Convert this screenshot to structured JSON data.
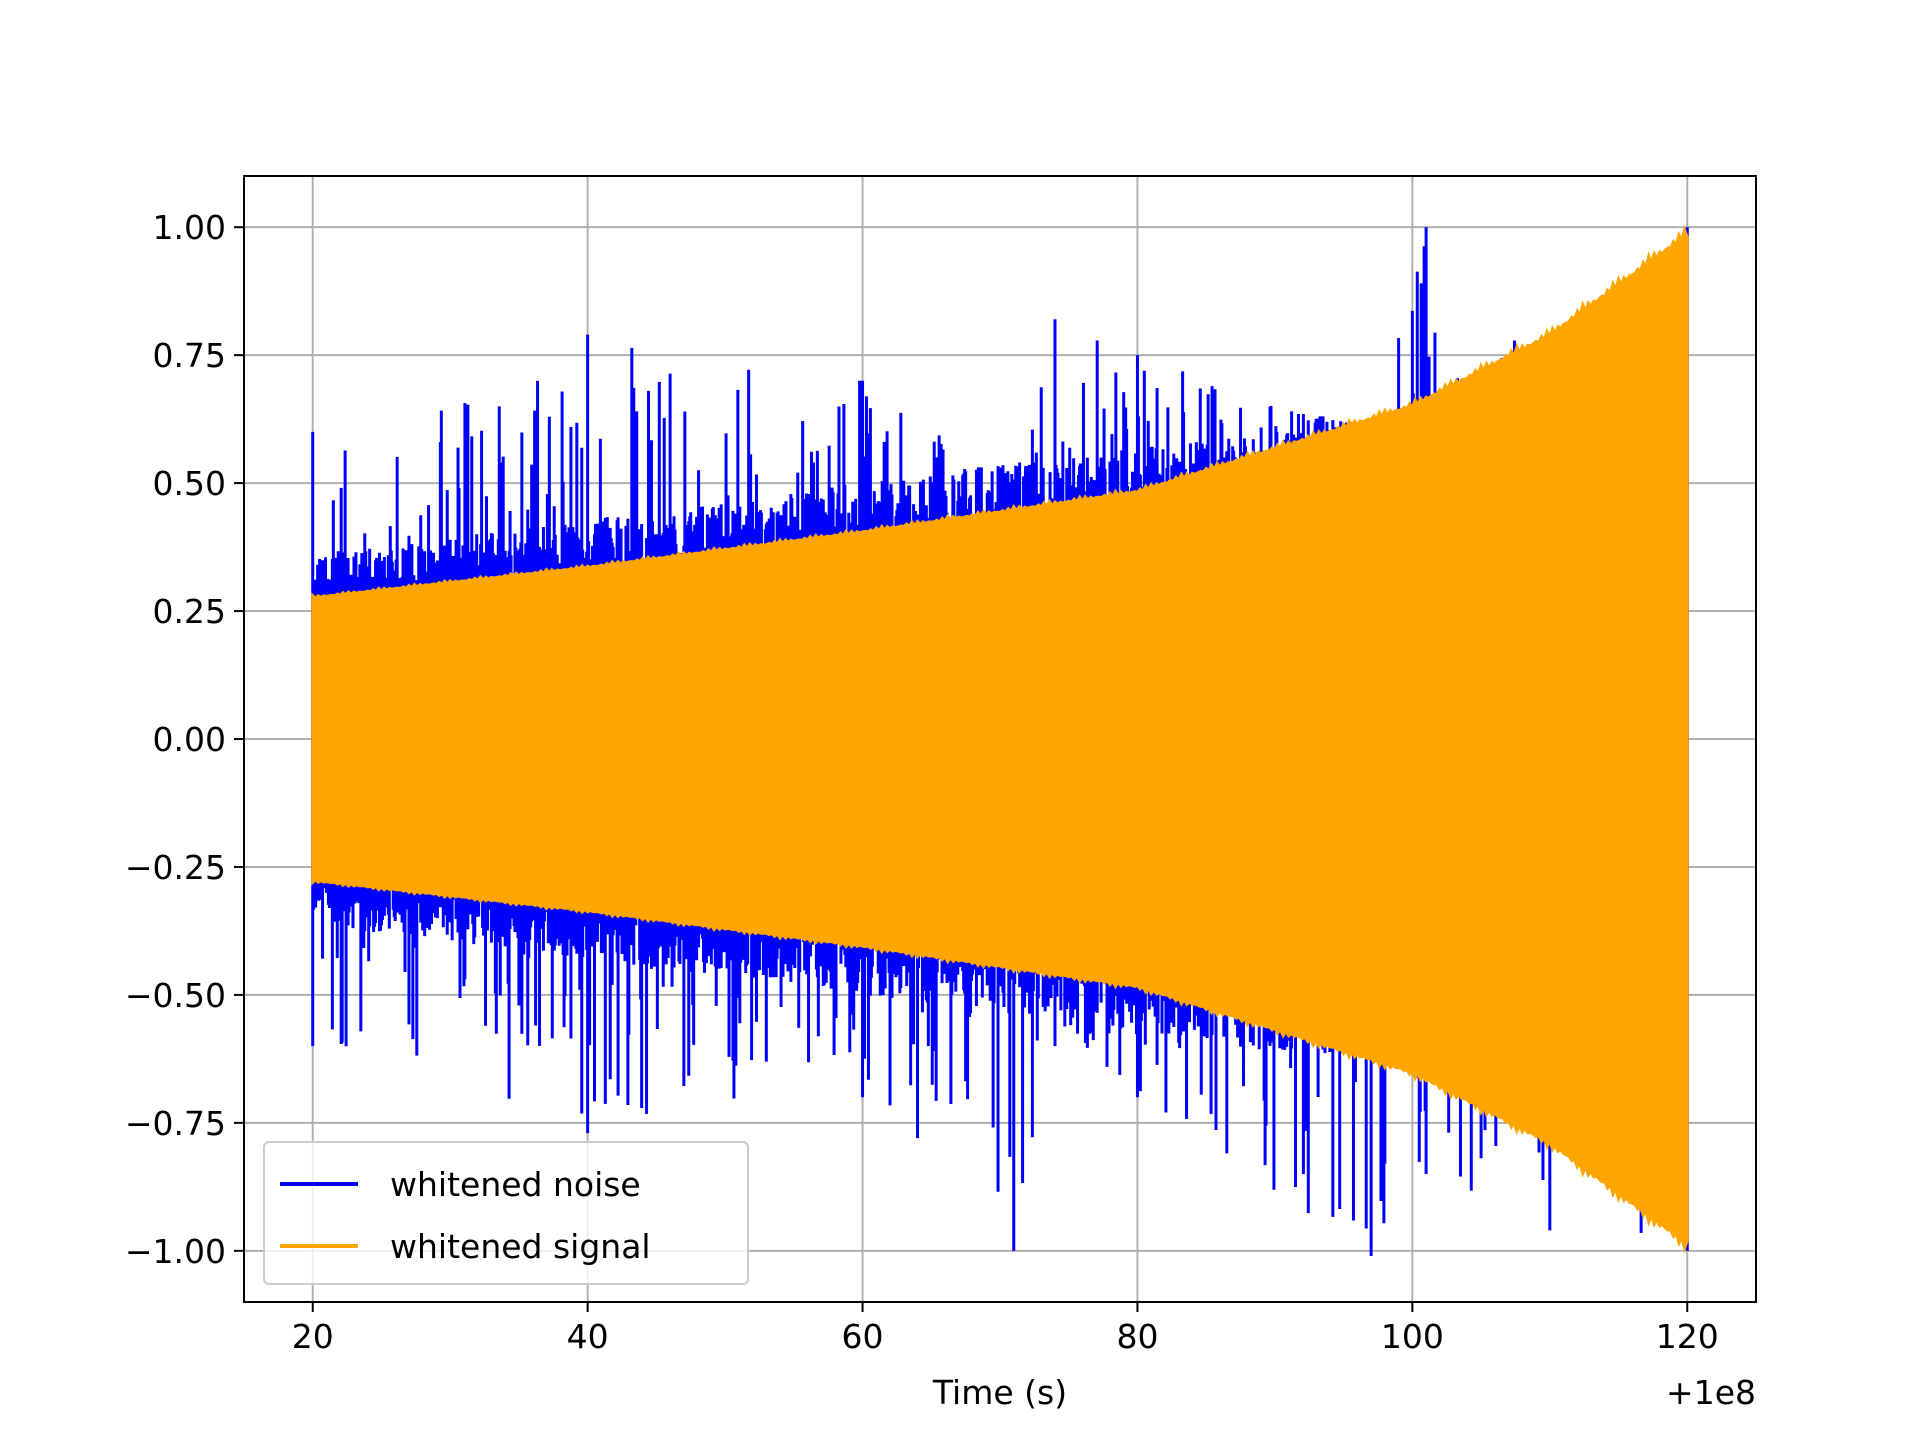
{
  "chart_data": {
    "type": "line",
    "xlabel": "Time (s)",
    "ylabel": "",
    "x_offset_label": "+1e8",
    "x_ticks": [
      20,
      40,
      60,
      80,
      100,
      120
    ],
    "x_tick_labels": [
      "20",
      "40",
      "60",
      "80",
      "100",
      "120"
    ],
    "y_ticks": [
      1.0,
      0.75,
      0.5,
      0.25,
      0.0,
      -0.25,
      -0.5,
      -0.75,
      -1.0
    ],
    "y_tick_labels": [
      "1.00",
      "0.75",
      "0.50",
      "0.25",
      "0.00",
      "−0.25",
      "−0.50",
      "−0.75",
      "−1.00"
    ],
    "xlim": [
      15,
      125
    ],
    "ylim": [
      -1.1,
      1.1
    ],
    "grid": true,
    "legend_position": "lower-left",
    "series": [
      {
        "name": "whitened noise",
        "color": "#0000ff",
        "x_range": [
          20,
          120
        ],
        "envelope": [
          {
            "x": 20,
            "min": -0.6,
            "max": 0.6
          },
          {
            "x": 40,
            "min": -0.77,
            "max": 0.79
          },
          {
            "x": 60,
            "min": -0.7,
            "max": 0.7
          },
          {
            "x": 71,
            "min": -1.0,
            "max": 0.5
          },
          {
            "x": 74,
            "min": -0.6,
            "max": 0.82
          },
          {
            "x": 80,
            "min": -0.7,
            "max": 0.75
          },
          {
            "x": 97,
            "min": -1.01,
            "max": 0.6
          },
          {
            "x": 101,
            "min": -0.85,
            "max": 1.0
          },
          {
            "x": 110,
            "min": -0.96,
            "max": 0.7
          },
          {
            "x": 120,
            "min": -1.0,
            "max": 1.0
          }
        ]
      },
      {
        "name": "whitened signal",
        "color": "#ffa500",
        "x_range": [
          20,
          120
        ],
        "envelope": [
          {
            "x": 20,
            "min": -0.28,
            "max": 0.28
          },
          {
            "x": 40,
            "min": -0.34,
            "max": 0.34
          },
          {
            "x": 60,
            "min": -0.41,
            "max": 0.41
          },
          {
            "x": 80,
            "min": -0.49,
            "max": 0.49
          },
          {
            "x": 100,
            "min": -0.66,
            "max": 0.66
          },
          {
            "x": 110,
            "min": -0.8,
            "max": 0.8
          },
          {
            "x": 120,
            "min": -1.0,
            "max": 1.0
          }
        ]
      }
    ]
  }
}
